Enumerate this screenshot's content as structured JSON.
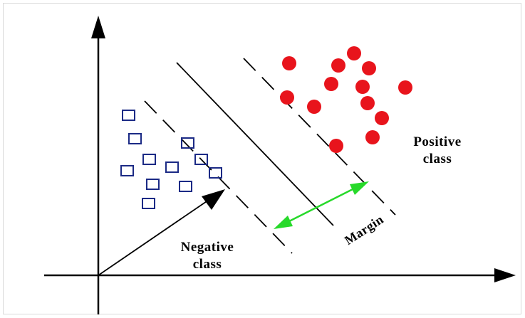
{
  "labels": {
    "positive_line1": "Positive",
    "positive_line2": "class",
    "negative_line1": "Negative",
    "negative_line2": "class",
    "margin": "Margin"
  },
  "colors": {
    "axis": "#000000",
    "positive_points": "#e8141c",
    "negative_points": "#1b2a85",
    "margin_arrow": "#27d92a",
    "hyperplane": "#000000"
  },
  "icons": {
    "positive_marker": "filled-circle",
    "negative_marker": "hollow-square"
  }
}
